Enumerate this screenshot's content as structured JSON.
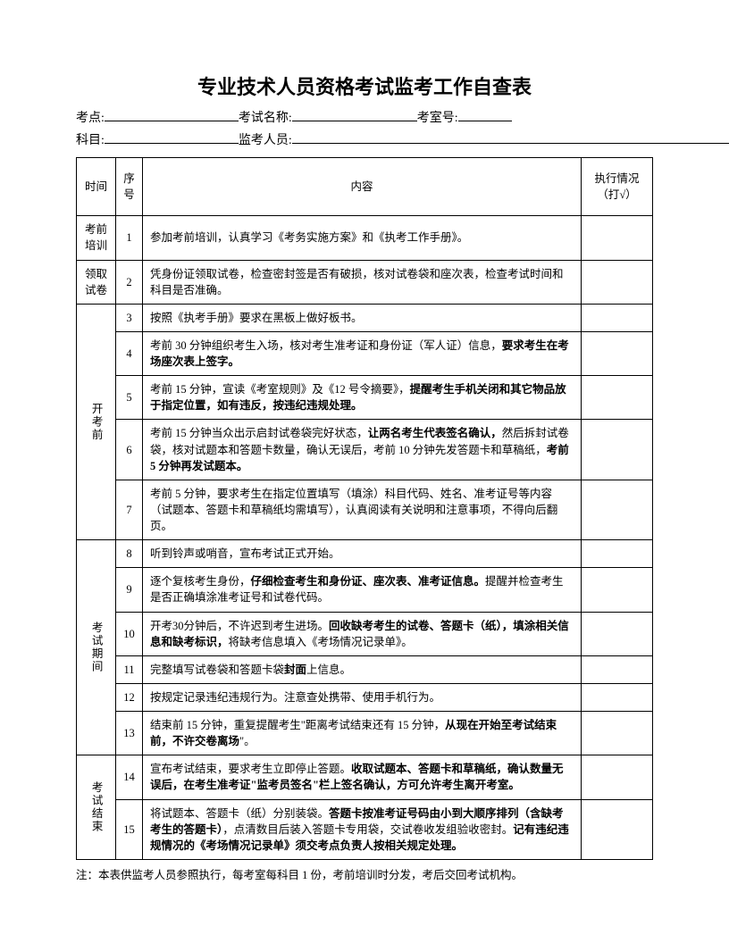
{
  "doc": {
    "title": "专业技术人员资格考试监考工作自查表",
    "meta": {
      "label_site": "考点:",
      "label_examname": "考试名称:",
      "label_room": "考室号:",
      "label_subject": "科目:",
      "label_proctor": "监考人员:"
    },
    "headers": {
      "time": "时间",
      "seq": "序号",
      "content": "内容",
      "check": "执行情况（打√）"
    },
    "sections": [
      {
        "time_label": "考前培训",
        "vertical": false,
        "rows": [
          {
            "seq": "1",
            "content": "参加考前培训，认真学习《考务实施方案》和《执考工作手册》。"
          }
        ]
      },
      {
        "time_label": "领取试卷",
        "vertical": false,
        "rows": [
          {
            "seq": "2",
            "content": "凭身份证领取试卷，检查密封签是否有破损，核对试卷袋和座次表，检查考试时间和科目是否准确。"
          }
        ]
      },
      {
        "time_label": "开考前",
        "vertical": true,
        "rows": [
          {
            "seq": "3",
            "content": "按照《执考手册》要求在黑板上做好板书。"
          },
          {
            "seq": "4",
            "content_parts": [
              {
                "t": "考前 30 分钟组织考生入场，核对考生准考证和身份证（军人证）信息，",
                "b": false
              },
              {
                "t": "要求考生在考场座次表上签字。",
                "b": true
              }
            ]
          },
          {
            "seq": "5",
            "content_parts": [
              {
                "t": "考前 15 分钟，宣读《考室规则》及《12 号令摘要》，",
                "b": false
              },
              {
                "t": "提醒考生手机关闭和其它物品放于指定位置，如有违反，按违纪违规处理。",
                "b": true
              }
            ]
          },
          {
            "seq": "6",
            "content_parts": [
              {
                "t": "考前 15 分钟当众出示启封试卷袋完好状态，",
                "b": false
              },
              {
                "t": "让两名考生代表签名确认，",
                "b": true
              },
              {
                "t": "然后拆封试卷袋，核对试题本和答题卡数量，确认无误后，考前 10 分钟先发答题卡和草稿纸，",
                "b": false
              },
              {
                "t": "考前 5 分钟再发试题本。",
                "b": true
              }
            ]
          },
          {
            "seq": "7",
            "content": "考前 5 分钟，要求考生在指定位置填写（填涂）科目代码、姓名、准考证号等内容（试题本、答题卡和草稿纸均需填写），认真阅读有关说明和注意事项，不得向后翻页。"
          }
        ]
      },
      {
        "time_label": "考试期间",
        "vertical": true,
        "rows": [
          {
            "seq": "8",
            "content": "听到铃声或哨音，宣布考试正式开始。"
          },
          {
            "seq": "9",
            "content_parts": [
              {
                "t": "逐个复核考生身份，",
                "b": false
              },
              {
                "t": "仔细检查考生和身份证、座次表、准考证信息。",
                "b": true
              },
              {
                "t": "提醒并检查考生是否正确填涂准考证号和试卷代码。",
                "b": false
              }
            ]
          },
          {
            "seq": "10",
            "content_parts": [
              {
                "t": "开考30分钟后，不许迟到考生进场。",
                "b": false
              },
              {
                "t": "回收缺考考生的试卷、答题卡（纸），填涂相关信息和缺考标识，",
                "b": true
              },
              {
                "t": "将缺考信息填入《考场情况记录单》。",
                "b": false
              }
            ]
          },
          {
            "seq": "11",
            "content_parts": [
              {
                "t": "完整填写试卷袋和答题卡袋",
                "b": false
              },
              {
                "t": "封面",
                "b": true
              },
              {
                "t": "上信息。",
                "b": false
              }
            ]
          },
          {
            "seq": "12",
            "content": "按规定记录违纪违规行为。注意查处携带、使用手机行为。"
          },
          {
            "seq": "13",
            "content_parts": [
              {
                "t": "结束前 15 分钟，重复提醒考生\"距离考试结束还有 15 分钟，",
                "b": false
              },
              {
                "t": "从现在开始至考试结束前，不许交卷离场",
                "b": true
              },
              {
                "t": "\"。",
                "b": false
              }
            ]
          }
        ]
      },
      {
        "time_label": "考试结束",
        "vertical": true,
        "rows": [
          {
            "seq": "14",
            "content_parts": [
              {
                "t": "宣布考试结束，要求考生立即停止答题。",
                "b": false
              },
              {
                "t": "收取试题本、答题卡和草稿纸，确认数量无误后，在考生准考证\"监考员签名\"栏上签名确认，方可允许考生离开考室。",
                "b": true
              }
            ]
          },
          {
            "seq": "15",
            "content_parts": [
              {
                "t": "将试题本、答题卡（纸）分别装袋。",
                "b": false
              },
              {
                "t": "答题卡按准考证号码由小到大顺序排列（含缺考考生的答题卡）",
                "b": true
              },
              {
                "t": "，点清数目后装入答题卡专用袋，交试卷收发组验收密封。",
                "b": false
              },
              {
                "t": "记有违纪违规情况的《考场情况记录单》须交考点负责人按相关规定处理。",
                "b": true
              }
            ]
          }
        ]
      }
    ],
    "footnote": "注：本表供监考人员参照执行，每考室每科目 1 份，考前培训时分发，考后交回考试机构。"
  },
  "style": {
    "page_bg": "#ffffff",
    "text_color": "#000000",
    "border_color": "#000000",
    "title_fontsize": 22,
    "body_fontsize": 13,
    "cell_fontsize": 12.5
  }
}
